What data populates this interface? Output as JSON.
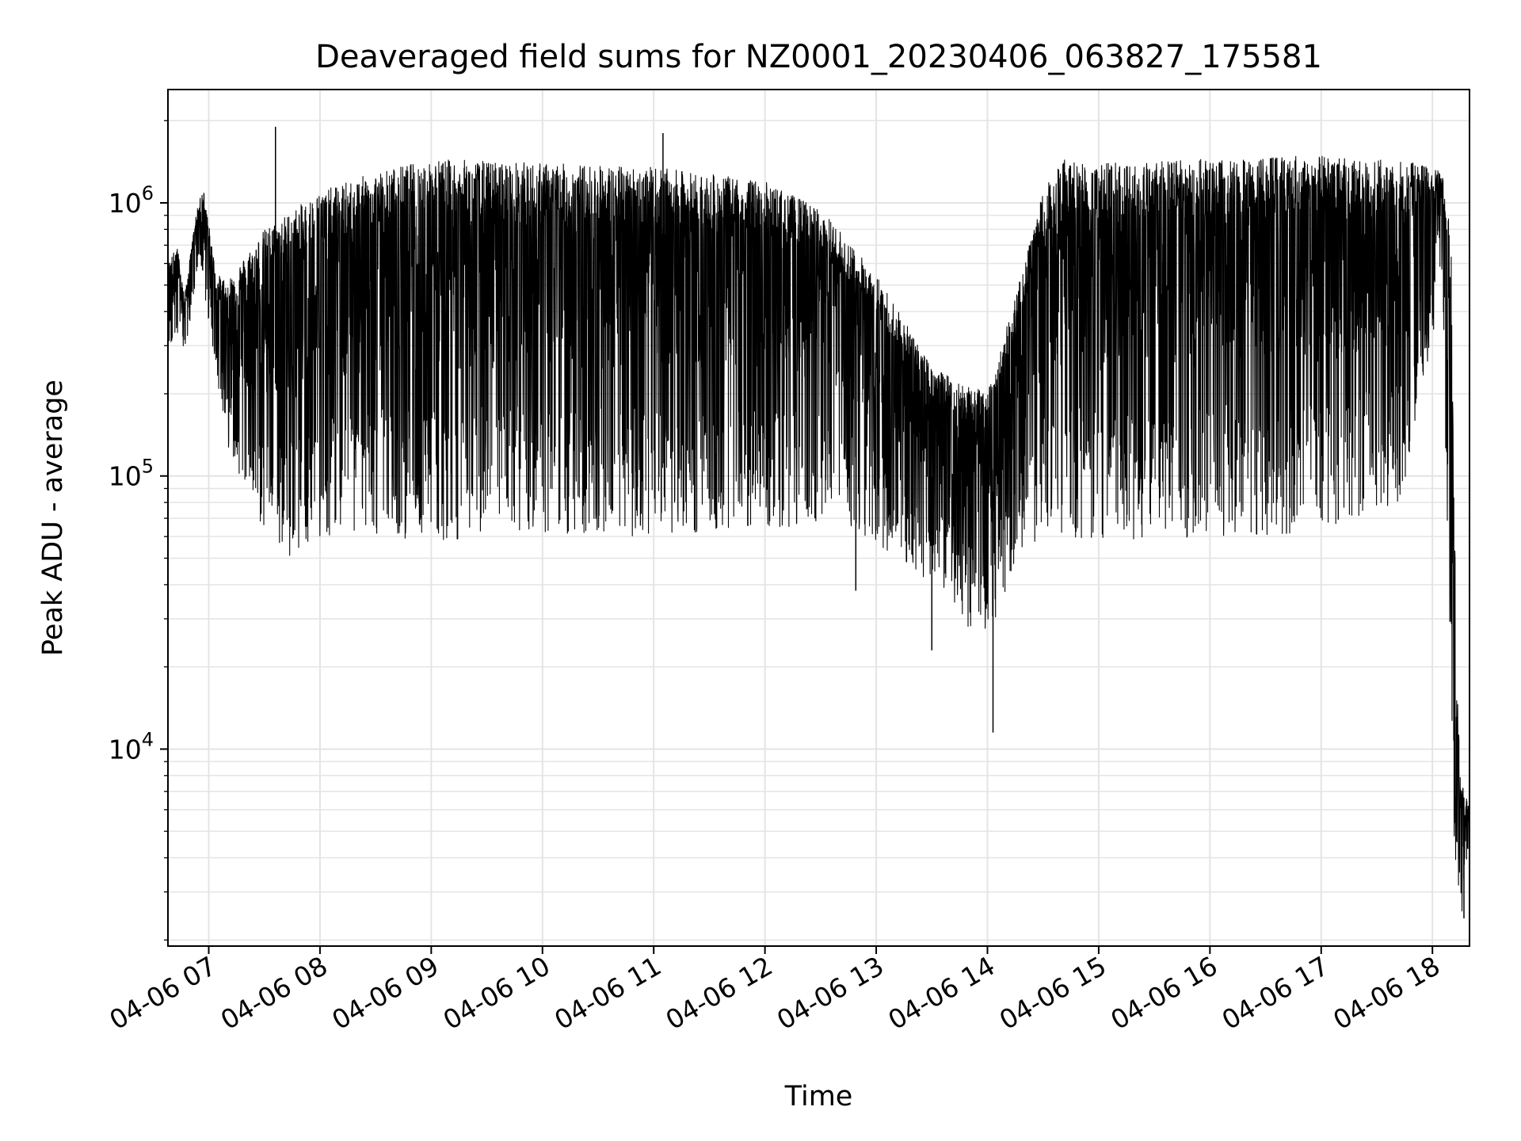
{
  "chart_data": {
    "type": "line",
    "title": "Deaveraged field sums for NZ0001_20230406_063827_175581",
    "xlabel": "Time",
    "ylabel": "Peak ADU - average",
    "yscale": "log",
    "ylim": [
      1900,
      2600000
    ],
    "xlim": [
      "2023-04-06 06:38",
      "2023-04-06 18:20"
    ],
    "grid": true,
    "line_color": "#000000",
    "x_ticks": [
      {
        "value": "2023-04-06 07:00",
        "label": "04-06 07"
      },
      {
        "value": "2023-04-06 08:00",
        "label": "04-06 08"
      },
      {
        "value": "2023-04-06 09:00",
        "label": "04-06 09"
      },
      {
        "value": "2023-04-06 10:00",
        "label": "04-06 10"
      },
      {
        "value": "2023-04-06 11:00",
        "label": "04-06 11"
      },
      {
        "value": "2023-04-06 12:00",
        "label": "04-06 12"
      },
      {
        "value": "2023-04-06 13:00",
        "label": "04-06 13"
      },
      {
        "value": "2023-04-06 14:00",
        "label": "04-06 14"
      },
      {
        "value": "2023-04-06 15:00",
        "label": "04-06 15"
      },
      {
        "value": "2023-04-06 16:00",
        "label": "04-06 16"
      },
      {
        "value": "2023-04-06 17:00",
        "label": "04-06 17"
      },
      {
        "value": "2023-04-06 18:00",
        "label": "04-06 18"
      }
    ],
    "y_ticks": [
      {
        "value": 10000,
        "base": "10",
        "exp": "4"
      },
      {
        "value": 100000,
        "base": "10",
        "exp": "5"
      },
      {
        "value": 1000000,
        "base": "10",
        "exp": "6"
      }
    ],
    "series": [
      {
        "upper_envelope": [
          {
            "x": "2023-04-06 06:38",
            "y": 600000
          },
          {
            "x": "2023-04-06 06:43",
            "y": 700000
          },
          {
            "x": "2023-04-06 06:47",
            "y": 450000
          },
          {
            "x": "2023-04-06 06:53",
            "y": 900000
          },
          {
            "x": "2023-04-06 06:57",
            "y": 1150000
          },
          {
            "x": "2023-04-06 07:04",
            "y": 550000
          },
          {
            "x": "2023-04-06 07:10",
            "y": 520000
          },
          {
            "x": "2023-04-06 07:30",
            "y": 800000
          },
          {
            "x": "2023-04-06 08:00",
            "y": 1100000
          },
          {
            "x": "2023-04-06 08:30",
            "y": 1300000
          },
          {
            "x": "2023-04-06 09:00",
            "y": 1450000
          },
          {
            "x": "2023-04-06 10:00",
            "y": 1400000
          },
          {
            "x": "2023-04-06 11:00",
            "y": 1350000
          },
          {
            "x": "2023-04-06 12:00",
            "y": 1200000
          },
          {
            "x": "2023-04-06 12:30",
            "y": 950000
          },
          {
            "x": "2023-04-06 13:00",
            "y": 550000
          },
          {
            "x": "2023-04-06 13:30",
            "y": 250000
          },
          {
            "x": "2023-04-06 14:00",
            "y": 200000
          },
          {
            "x": "2023-04-06 14:15",
            "y": 450000
          },
          {
            "x": "2023-04-06 14:30",
            "y": 1100000
          },
          {
            "x": "2023-04-06 14:40",
            "y": 1450000
          },
          {
            "x": "2023-04-06 15:00",
            "y": 1400000
          },
          {
            "x": "2023-04-06 16:00",
            "y": 1450000
          },
          {
            "x": "2023-04-06 17:00",
            "y": 1500000
          },
          {
            "x": "2023-04-06 17:50",
            "y": 1400000
          },
          {
            "x": "2023-04-06 18:05",
            "y": 1300000
          },
          {
            "x": "2023-04-06 18:10",
            "y": 800000
          },
          {
            "x": "2023-04-06 18:13",
            "y": 20000
          },
          {
            "x": "2023-04-06 18:15",
            "y": 8000
          },
          {
            "x": "2023-04-06 18:20",
            "y": 6000
          }
        ],
        "lower_envelope": [
          {
            "x": "2023-04-06 06:38",
            "y": 300000
          },
          {
            "x": "2023-04-06 06:47",
            "y": 280000
          },
          {
            "x": "2023-04-06 06:55",
            "y": 600000
          },
          {
            "x": "2023-04-06 07:10",
            "y": 130000
          },
          {
            "x": "2023-04-06 07:30",
            "y": 60000
          },
          {
            "x": "2023-04-06 07:45",
            "y": 50000
          },
          {
            "x": "2023-04-06 08:00",
            "y": 60000
          },
          {
            "x": "2023-04-06 08:30",
            "y": 60000
          },
          {
            "x": "2023-04-06 09:00",
            "y": 58000
          },
          {
            "x": "2023-04-06 10:00",
            "y": 60000
          },
          {
            "x": "2023-04-06 11:00",
            "y": 60000
          },
          {
            "x": "2023-04-06 12:00",
            "y": 62000
          },
          {
            "x": "2023-04-06 12:40",
            "y": 70000
          },
          {
            "x": "2023-04-06 13:10",
            "y": 50000
          },
          {
            "x": "2023-04-06 13:40",
            "y": 35000
          },
          {
            "x": "2023-04-06 14:00",
            "y": 22000
          },
          {
            "x": "2023-04-06 14:15",
            "y": 50000
          },
          {
            "x": "2023-04-06 14:30",
            "y": 60000
          },
          {
            "x": "2023-04-06 15:00",
            "y": 58000
          },
          {
            "x": "2023-04-06 16:00",
            "y": 60000
          },
          {
            "x": "2023-04-06 17:00",
            "y": 62000
          },
          {
            "x": "2023-04-06 17:45",
            "y": 80000
          },
          {
            "x": "2023-04-06 18:05",
            "y": 500000
          },
          {
            "x": "2023-04-06 18:12",
            "y": 4000
          },
          {
            "x": "2023-04-06 18:16",
            "y": 2500
          },
          {
            "x": "2023-04-06 18:20",
            "y": 4500
          }
        ],
        "notable_spikes": [
          {
            "x": "2023-04-06 07:36",
            "y": 1900000
          },
          {
            "x": "2023-04-06 11:05",
            "y": 1800000
          },
          {
            "x": "2023-04-06 12:49",
            "y": 38000
          },
          {
            "x": "2023-04-06 13:30",
            "y": 23000
          },
          {
            "x": "2023-04-06 14:03",
            "y": 11500
          },
          {
            "x": "2023-04-06 18:17",
            "y": 2400
          }
        ]
      }
    ]
  }
}
